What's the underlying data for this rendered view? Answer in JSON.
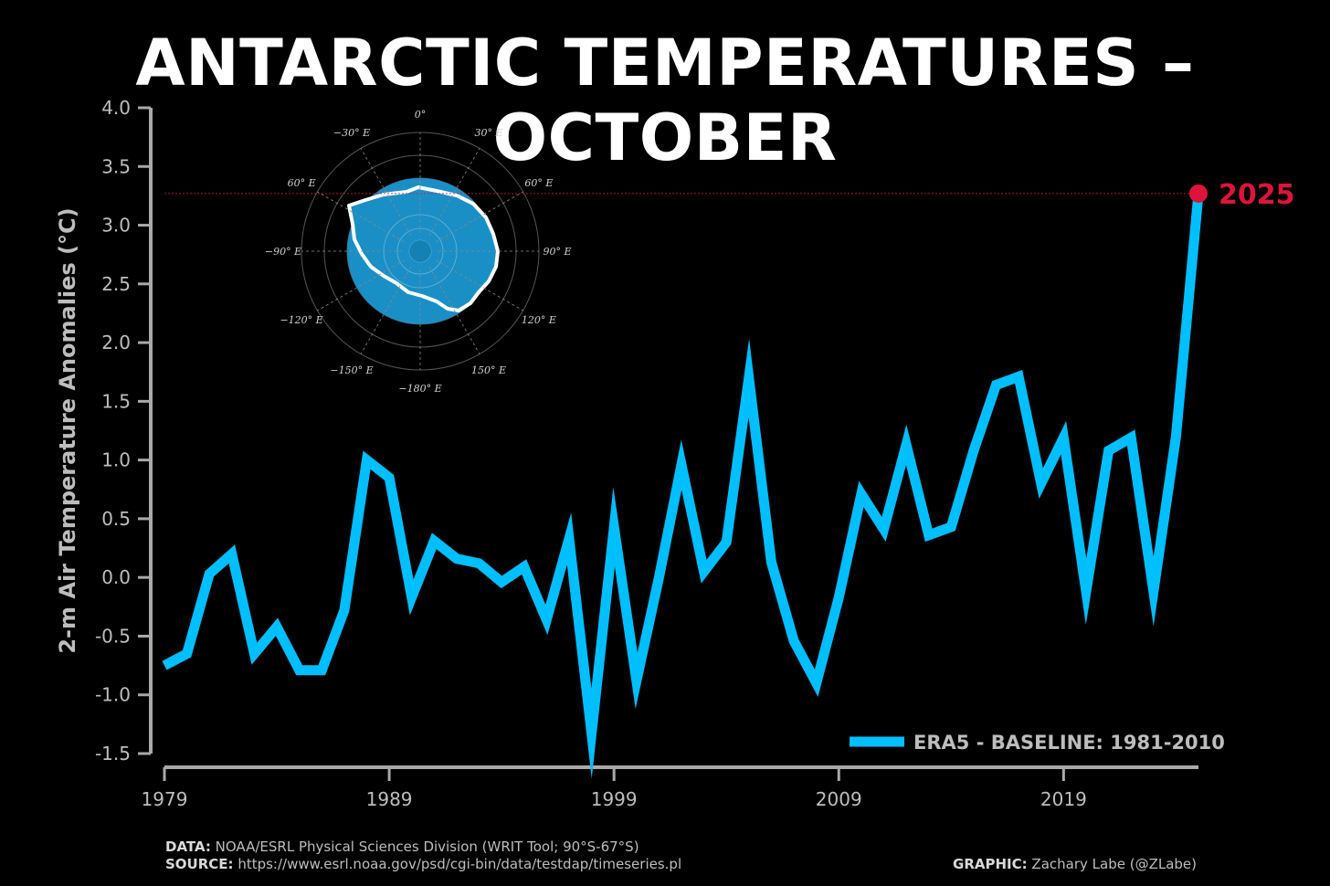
{
  "title": "ANTARCTIC TEMPERATURES – OCTOBER",
  "chart_data": {
    "type": "line",
    "title": "ANTARCTIC TEMPERATURES – OCTOBER",
    "xlabel": "",
    "ylabel": "2-m Air Temperature Anomalies (°C)",
    "xlim": [
      1979,
      2025
    ],
    "ylim": [
      -1.5,
      4.0
    ],
    "yticks": [
      "-1.5",
      "-1.0",
      "-0.5",
      "0.0",
      "0.5",
      "1.0",
      "1.5",
      "2.0",
      "2.5",
      "3.0",
      "3.5",
      "4.0"
    ],
    "xticks": [
      "1979",
      "1989",
      "1999",
      "2009",
      "2019"
    ],
    "grid": false,
    "legend": "bottom-right",
    "highlight": {
      "x": 2025,
      "y": 3.27,
      "label": "2025",
      "color": "#dc143c"
    },
    "series": [
      {
        "name": "ERA5 - BASELINE: 1981-2010",
        "color": "#00bfff",
        "x": [
          1979,
          1980,
          1981,
          1982,
          1983,
          1984,
          1985,
          1986,
          1987,
          1988,
          1989,
          1990,
          1991,
          1992,
          1993,
          1994,
          1995,
          1996,
          1997,
          1998,
          1999,
          2000,
          2001,
          2002,
          2003,
          2004,
          2005,
          2006,
          2007,
          2008,
          2009,
          2010,
          2011,
          2012,
          2013,
          2014,
          2015,
          2016,
          2017,
          2018,
          2019,
          2020,
          2021,
          2022,
          2023,
          2024,
          2025
        ],
        "y": [
          -0.75,
          -0.65,
          0.03,
          0.2,
          -0.65,
          -0.42,
          -0.79,
          -0.79,
          -0.28,
          1.0,
          0.85,
          -0.17,
          0.31,
          0.16,
          0.12,
          -0.04,
          0.09,
          -0.36,
          0.33,
          -1.33,
          0.43,
          -0.88,
          0.0,
          0.96,
          0.05,
          0.3,
          1.7,
          0.13,
          -0.54,
          -0.9,
          -0.17,
          0.71,
          0.41,
          1.13,
          0.36,
          0.43,
          1.08,
          1.64,
          1.71,
          0.8,
          1.19,
          -0.12,
          1.08,
          1.19,
          -0.12,
          1.2,
          3.27
        ]
      }
    ]
  },
  "inset_map": {
    "labels": [
      "0°",
      "30° E",
      "60° E",
      "90° E",
      "120° E",
      "150° E",
      "−180° E",
      "−150° E",
      "−120° E",
      "−90° E",
      "60° E",
      "−30° E"
    ],
    "ocean_color": "#1a8fc6",
    "coast_color": "#ffffff"
  },
  "footer": {
    "data_label": "DATA:",
    "data_text": "NOAA/ESRL Physical Sciences Division (WRIT Tool; 90°S-67°S)",
    "source_label": "SOURCE:",
    "source_text": "https://www.esrl.noaa.gov/psd/cgi-bin/data/testdap/timeseries.pl",
    "graphic_label": "GRAPHIC:",
    "graphic_text": "Zachary Labe (@ZLabe)"
  }
}
